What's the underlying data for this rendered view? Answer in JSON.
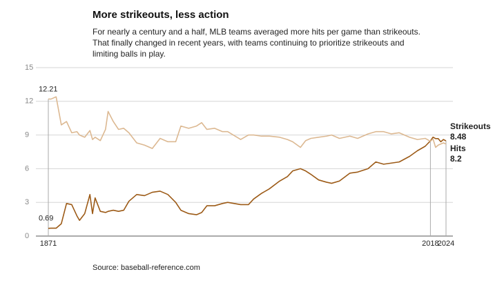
{
  "chart_data": {
    "type": "line",
    "title": "More strikeouts, less action",
    "subtitle": [
      "For nearly a century and a half, MLB teams averaged more hits per game than strikeouts.",
      "That finally changed in recent years, with teams continuing to prioritize strikeouts and",
      "limiting balls in play."
    ],
    "source": "Source: baseball-reference.com",
    "x": [
      1871,
      1872,
      1874,
      1876,
      1878,
      1880,
      1882,
      1883,
      1885,
      1887,
      1888,
      1889,
      1891,
      1893,
      1894,
      1896,
      1898,
      1900,
      1902,
      1905,
      1908,
      1911,
      1914,
      1917,
      1920,
      1922,
      1925,
      1928,
      1930,
      1932,
      1935,
      1938,
      1940,
      1945,
      1948,
      1950,
      1953,
      1956,
      1960,
      1963,
      1965,
      1968,
      1970,
      1972,
      1975,
      1978,
      1980,
      1983,
      1987,
      1990,
      1994,
      1997,
      2000,
      2003,
      2006,
      2010,
      2013,
      2016,
      2018,
      2019,
      2020,
      2021,
      2022,
      2023,
      2024
    ],
    "series": [
      {
        "name": "Strikeouts",
        "color": "#9c5a16",
        "label_color": "#b06b1e",
        "values": [
          0.69,
          0.7,
          0.7,
          1.1,
          2.9,
          2.8,
          1.8,
          1.4,
          2.0,
          3.7,
          2.0,
          3.4,
          2.2,
          2.1,
          2.2,
          2.3,
          2.2,
          2.3,
          3.1,
          3.7,
          3.6,
          3.9,
          4.0,
          3.7,
          3.0,
          2.3,
          2.0,
          1.9,
          2.1,
          2.7,
          2.7,
          2.9,
          3.0,
          2.8,
          2.8,
          3.3,
          3.8,
          4.2,
          4.9,
          5.3,
          5.8,
          6.0,
          5.8,
          5.5,
          5.0,
          4.8,
          4.7,
          4.9,
          5.6,
          5.7,
          6.0,
          6.6,
          6.4,
          6.5,
          6.6,
          7.1,
          7.6,
          8.0,
          8.48,
          8.81,
          8.68,
          8.68,
          8.4,
          8.6,
          8.48
        ]
      },
      {
        "name": "Hits",
        "color": "#dcb891",
        "label_color": "#d9aa77",
        "values": [
          12.21,
          12.2,
          12.4,
          9.9,
          10.2,
          9.2,
          9.3,
          9.0,
          8.8,
          9.4,
          8.6,
          8.8,
          8.5,
          9.5,
          11.1,
          10.2,
          9.5,
          9.6,
          9.2,
          8.3,
          8.1,
          7.8,
          8.7,
          8.4,
          8.4,
          9.8,
          9.6,
          9.8,
          10.1,
          9.5,
          9.6,
          9.3,
          9.3,
          8.6,
          9.0,
          9.0,
          8.9,
          8.9,
          8.8,
          8.6,
          8.4,
          7.9,
          8.5,
          8.7,
          8.8,
          8.9,
          9.0,
          8.7,
          8.9,
          8.7,
          9.1,
          9.3,
          9.3,
          9.1,
          9.2,
          8.8,
          8.6,
          8.7,
          8.44,
          8.65,
          7.9,
          8.1,
          8.2,
          8.3,
          8.2
        ]
      }
    ],
    "xlim": [
      1871,
      2024
    ],
    "xticks": [
      1871,
      2018,
      2024
    ],
    "ylim": [
      0,
      15
    ],
    "yticks": [
      0,
      3,
      6,
      9,
      12,
      15
    ],
    "grid": true
  }
}
